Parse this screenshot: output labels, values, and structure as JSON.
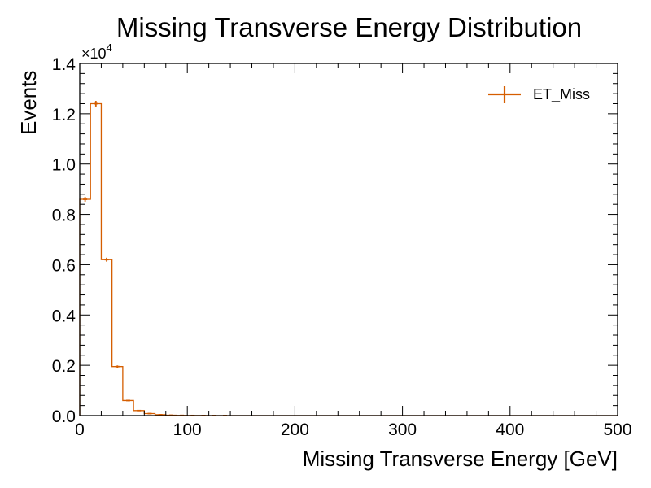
{
  "chart_data": {
    "type": "histogram",
    "title": "Missing Transverse Energy Distribution",
    "xlabel": "Missing Transverse Energy [GeV]",
    "ylabel": "Events",
    "y_multiplier": "×10",
    "y_exponent": "4",
    "xlim": [
      0,
      500
    ],
    "ylim": [
      0,
      14000
    ],
    "x_ticks": [
      0,
      100,
      200,
      300,
      400,
      500
    ],
    "x_tick_labels": [
      "0",
      "100",
      "200",
      "300",
      "400",
      "500"
    ],
    "y_ticks": [
      0,
      2000,
      4000,
      6000,
      8000,
      10000,
      12000,
      14000
    ],
    "y_tick_labels": [
      "0.0",
      "0.2",
      "0.4",
      "0.6",
      "0.8",
      "1.0",
      "1.2",
      "1.4"
    ],
    "grid": false,
    "legend_position": "top-right",
    "bin_width": 10,
    "series": [
      {
        "name": "ET_Miss",
        "color": "#d55e00",
        "bin_edges": [
          0,
          10,
          20,
          30,
          40,
          50,
          60,
          70,
          80,
          90,
          100,
          110,
          120,
          130,
          140,
          150,
          160,
          170,
          180,
          190,
          200,
          210,
          220,
          230,
          240,
          250,
          260,
          270,
          280,
          290,
          300,
          310,
          320,
          330,
          340,
          350,
          360,
          370,
          380,
          390,
          400,
          410,
          420,
          430,
          440,
          450,
          460,
          470,
          480,
          490,
          500
        ],
        "values": [
          8600,
          12400,
          6200,
          1950,
          600,
          200,
          80,
          35,
          15,
          8,
          4,
          2,
          1,
          1,
          0,
          0,
          0,
          0,
          0,
          0,
          0,
          0,
          0,
          0,
          0,
          0,
          0,
          0,
          0,
          0,
          0,
          0,
          0,
          0,
          0,
          0,
          0,
          0,
          0,
          0,
          0,
          0,
          0,
          0,
          0,
          0,
          0,
          0,
          0,
          0
        ]
      }
    ]
  }
}
